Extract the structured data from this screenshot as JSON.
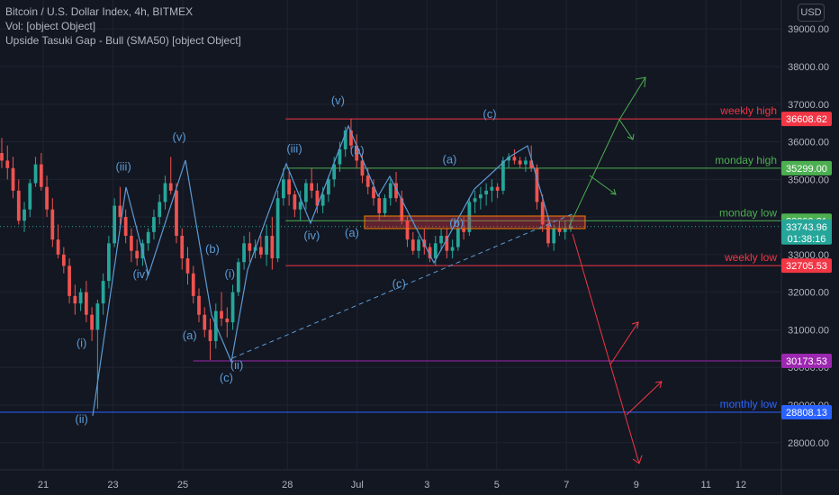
{
  "header": {
    "title": "Bitcoin / U.S. Dollar Index, 4h, BITMEX",
    "line2": "Vol: [object Object]",
    "line3": "Upside Tasuki Gap - Bull (SMA50) [object Object]"
  },
  "currency_button": "USD",
  "chart_data": {
    "type": "candlestick",
    "title": "Bitcoin / U.S. Dollar Index, 4h, BITMEX",
    "ylim": [
      27500,
      39300
    ],
    "y_ticks": [
      28000,
      29000,
      30000,
      31000,
      32000,
      33000,
      34000,
      35000,
      36000,
      37000,
      38000,
      39000
    ],
    "y_tick_labels": [
      "28000.00",
      "29000.00",
      "30000.00",
      "31000.00",
      "32000.00",
      "33000.00",
      "34000.00",
      "35000.00",
      "36000.00",
      "37000.00",
      "38000.00",
      "39000.00"
    ],
    "x_ticks": [
      {
        "label": "21",
        "day": 21
      },
      {
        "label": "23",
        "day": 23
      },
      {
        "label": "25",
        "day": 25
      },
      {
        "label": "28",
        "day": 28
      },
      {
        "label": "Jul",
        "day": 30
      },
      {
        "label": "3",
        "day": 32
      },
      {
        "label": "5",
        "day": 34
      },
      {
        "label": "7",
        "day": 36
      },
      {
        "label": "9",
        "day": 38
      },
      {
        "label": "11",
        "day": 40
      },
      {
        "label": "12",
        "day": 41
      }
    ],
    "x_range_days": [
      19.73,
      41.17
    ],
    "grid": true,
    "colors": {
      "up": "#26a69a",
      "down": "#ef5350",
      "wave": "#5b9bd5",
      "resistance": "#f23645",
      "support_green": "#4caf50",
      "purple": "#9c27b0",
      "blue": "#2962ff",
      "pane": "#131722",
      "grid": "#1f2330"
    },
    "price_levels": [
      {
        "label": "weekly high",
        "price_label": "36608.62",
        "price": 36608.62,
        "color": "#f23645",
        "from_day": 27.95
      },
      {
        "label": "monday high",
        "price_label": "35299.00",
        "price": 35299.0,
        "color": "#4caf50",
        "from_day": 27.95
      },
      {
        "label": "monday low",
        "price_label": "33899.81",
        "price": 33899.81,
        "color": "#4caf50",
        "from_day": 27.95
      },
      {
        "label": "weekly low",
        "price_label": "32705.53",
        "price": 32705.53,
        "color": "#f23645",
        "from_day": 27.95
      },
      {
        "label": "",
        "price_label": "30173.53",
        "price": 30173.53,
        "color": "#9c27b0",
        "from_day": 25.3
      },
      {
        "label": "monthly low",
        "price_label": "28808.13",
        "price": 28808.13,
        "color": "#2962ff",
        "from_day": 19.73
      }
    ],
    "current_price": {
      "value": "33743.96",
      "countdown": "01:38:16",
      "price": 33743.96
    },
    "candles_ohlc": [
      [
        35700,
        36100,
        35300,
        35500
      ],
      [
        35500,
        35900,
        35000,
        35300
      ],
      [
        35300,
        35600,
        34500,
        34700
      ],
      [
        34700,
        35000,
        33800,
        33900
      ],
      [
        33900,
        34400,
        33600,
        34200
      ],
      [
        34200,
        35000,
        34000,
        34900
      ],
      [
        34900,
        35600,
        34800,
        35400
      ],
      [
        35400,
        35700,
        34700,
        34800
      ],
      [
        34800,
        35100,
        34000,
        34200
      ],
      [
        34200,
        34500,
        33200,
        33400
      ],
      [
        33400,
        33800,
        32900,
        33000
      ],
      [
        33000,
        33200,
        32500,
        32700
      ],
      [
        32700,
        32900,
        31700,
        31900
      ],
      [
        31900,
        32200,
        31400,
        31700
      ],
      [
        31700,
        32100,
        31500,
        32000
      ],
      [
        32000,
        32300,
        31200,
        31400
      ],
      [
        31400,
        31600,
        30700,
        31000
      ],
      [
        31000,
        31800,
        28900,
        31700
      ],
      [
        31700,
        32500,
        31400,
        32300
      ],
      [
        32300,
        33500,
        32100,
        33300
      ],
      [
        33300,
        34500,
        33200,
        34300
      ],
      [
        34300,
        34800,
        33800,
        34000
      ],
      [
        34000,
        34200,
        33300,
        33500
      ],
      [
        33500,
        33700,
        32800,
        33100
      ],
      [
        33100,
        33400,
        32700,
        32900
      ],
      [
        32900,
        33400,
        32700,
        33300
      ],
      [
        33300,
        33700,
        33100,
        33600
      ],
      [
        33600,
        34200,
        33400,
        34000
      ],
      [
        34000,
        34600,
        33800,
        34400
      ],
      [
        34400,
        35100,
        34200,
        34900
      ],
      [
        34900,
        35600,
        34600,
        34700
      ],
      [
        34700,
        34900,
        33300,
        33500
      ],
      [
        33500,
        33700,
        32600,
        32900
      ],
      [
        32900,
        33200,
        32200,
        32500
      ],
      [
        32500,
        32700,
        31700,
        31900
      ],
      [
        31900,
        32100,
        31200,
        31400
      ],
      [
        31400,
        31600,
        30800,
        31000
      ],
      [
        31000,
        31300,
        30200,
        30700
      ],
      [
        30700,
        31700,
        30500,
        31500
      ],
      [
        31500,
        32000,
        31100,
        31300
      ],
      [
        31300,
        31600,
        30800,
        31200
      ],
      [
        31200,
        32200,
        31000,
        32000
      ],
      [
        32000,
        32900,
        31900,
        32800
      ],
      [
        32800,
        33500,
        32600,
        33300
      ],
      [
        33300,
        33600,
        32800,
        33100
      ],
      [
        33100,
        33400,
        32900,
        33200
      ],
      [
        33200,
        33500,
        32900,
        33000
      ],
      [
        33000,
        33800,
        32700,
        33500
      ],
      [
        33500,
        34000,
        32600,
        32900
      ],
      [
        32900,
        34700,
        32800,
        34500
      ],
      [
        34500,
        35300,
        34300,
        35000
      ],
      [
        35000,
        35200,
        34300,
        34600
      ],
      [
        34600,
        34700,
        34000,
        34200
      ],
      [
        34200,
        34700,
        33900,
        34400
      ],
      [
        34400,
        35000,
        34200,
        34900
      ],
      [
        34900,
        35300,
        34500,
        34700
      ],
      [
        34700,
        34900,
        34100,
        34300
      ],
      [
        34300,
        34800,
        34100,
        34600
      ],
      [
        34600,
        35100,
        34400,
        35000
      ],
      [
        35000,
        35600,
        34800,
        35400
      ],
      [
        35400,
        36000,
        35200,
        35800
      ],
      [
        35800,
        36400,
        35600,
        36300
      ],
      [
        36300,
        36600,
        35800,
        35900
      ],
      [
        35900,
        36200,
        35300,
        35500
      ],
      [
        35500,
        35700,
        34900,
        35100
      ],
      [
        35100,
        35300,
        34600,
        34800
      ],
      [
        34800,
        35000,
        34300,
        34500
      ],
      [
        34500,
        34600,
        33900,
        34100
      ],
      [
        34100,
        34600,
        34000,
        34500
      ],
      [
        34500,
        35000,
        34300,
        34900
      ],
      [
        34900,
        35200,
        34400,
        34500
      ],
      [
        34500,
        34700,
        33800,
        33900
      ],
      [
        33900,
        34000,
        33200,
        33400
      ],
      [
        33400,
        33600,
        33000,
        33100
      ],
      [
        33100,
        33500,
        32900,
        33400
      ],
      [
        33400,
        33700,
        33000,
        33200
      ],
      [
        33200,
        33300,
        32800,
        32900
      ],
      [
        32900,
        33500,
        32700,
        33300
      ],
      [
        33300,
        33700,
        33100,
        33500
      ],
      [
        33500,
        33700,
        32900,
        33100
      ],
      [
        33100,
        33400,
        32900,
        33200
      ],
      [
        33200,
        33900,
        33100,
        33700
      ],
      [
        33700,
        34000,
        33400,
        33600
      ],
      [
        33600,
        34500,
        33500,
        34400
      ],
      [
        34400,
        34700,
        34100,
        34500
      ],
      [
        34500,
        34800,
        34200,
        34600
      ],
      [
        34600,
        34900,
        34300,
        34700
      ],
      [
        34700,
        35000,
        34400,
        34800
      ],
      [
        34800,
        34900,
        34500,
        34700
      ],
      [
        34700,
        35600,
        34600,
        35500
      ],
      [
        35500,
        35700,
        35300,
        35600
      ],
      [
        35600,
        35800,
        35400,
        35500
      ],
      [
        35500,
        35600,
        35300,
        35400
      ],
      [
        35400,
        35600,
        35200,
        35500
      ],
      [
        35500,
        35900,
        35200,
        35300
      ],
      [
        35300,
        35400,
        34200,
        34400
      ],
      [
        34400,
        34600,
        33600,
        33800
      ],
      [
        33800,
        34000,
        33200,
        33300
      ],
      [
        33300,
        33800,
        33100,
        33700
      ],
      [
        33700,
        33900,
        33500,
        33600
      ],
      [
        33600,
        33900,
        33400,
        33700
      ],
      [
        33700,
        34000,
        33600,
        33750
      ]
    ],
    "wave_labels": [
      {
        "text": "(iii)",
        "day": 23.3,
        "price": 35240
      },
      {
        "text": "(iv)",
        "day": 23.8,
        "price": 32380
      },
      {
        "text": "(v)",
        "day": 24.9,
        "price": 36020
      },
      {
        "text": "(i)",
        "day": 22.1,
        "price": 30540
      },
      {
        "text": "(ii)",
        "day": 22.1,
        "price": 28520
      },
      {
        "text": "(b)",
        "day": 25.85,
        "price": 33040
      },
      {
        "text": "(a)",
        "day": 25.2,
        "price": 30750
      },
      {
        "text": "(i)",
        "day": 26.35,
        "price": 32390
      },
      {
        "text": "(ii)",
        "day": 26.55,
        "price": 29960
      },
      {
        "text": "(c)",
        "day": 26.25,
        "price": 29620
      },
      {
        "text": "(iii)",
        "day": 28.2,
        "price": 35710
      },
      {
        "text": "(iv)",
        "day": 28.7,
        "price": 33400
      },
      {
        "text": "(v)",
        "day": 29.45,
        "price": 37000
      },
      {
        "text": "(b)",
        "day": 30.0,
        "price": 35660
      },
      {
        "text": "(a)",
        "day": 29.85,
        "price": 33470
      },
      {
        "text": "(c)",
        "day": 31.2,
        "price": 32120
      },
      {
        "text": "(a)",
        "day": 32.65,
        "price": 35430
      },
      {
        "text": "(b)",
        "day": 32.85,
        "price": 33740
      },
      {
        "text": "(c)",
        "day": 33.8,
        "price": 36630
      }
    ]
  }
}
